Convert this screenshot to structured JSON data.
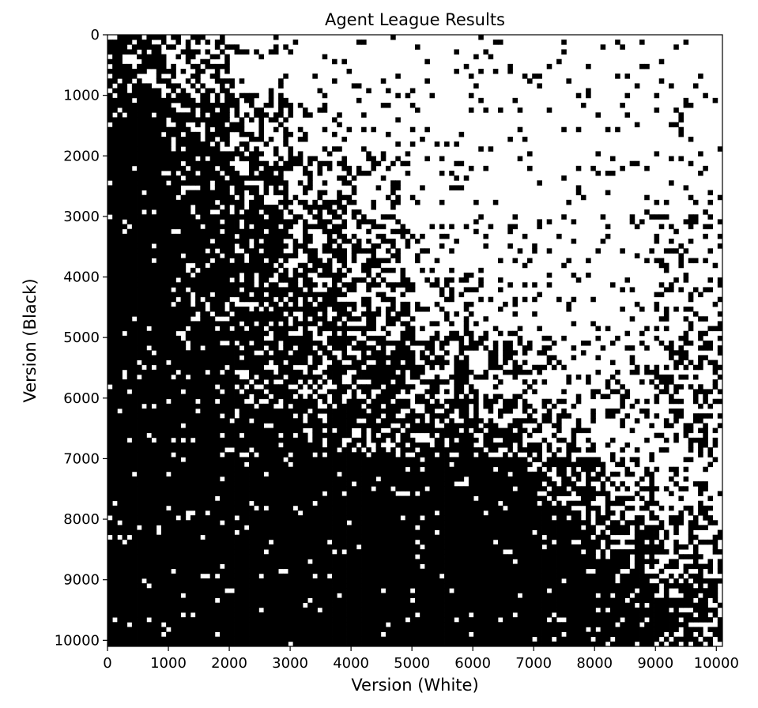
{
  "chart_data": {
    "type": "heatmap",
    "title": "Agent League Results",
    "xlabel": "Version (White)",
    "ylabel": "Version (Black)",
    "xlim": [
      0,
      10100
    ],
    "ylim": [
      10100,
      0
    ],
    "x_ticks": [
      0,
      1000,
      2000,
      3000,
      4000,
      5000,
      6000,
      7000,
      8000,
      9000,
      10000
    ],
    "y_ticks": [
      0,
      1000,
      2000,
      3000,
      4000,
      5000,
      6000,
      7000,
      8000,
      9000,
      10000
    ],
    "x_tick_labels": [
      "0",
      "1000",
      "2000",
      "3000",
      "4000",
      "5000",
      "6000",
      "7000",
      "8000",
      "9000",
      "10000"
    ],
    "y_tick_labels": [
      "0",
      "1000",
      "2000",
      "3000",
      "4000",
      "5000",
      "6000",
      "7000",
      "8000",
      "9000",
      "10000"
    ],
    "grid": false,
    "colormap": {
      "0": "#ffffff",
      "1": "#000000"
    },
    "bands": [
      {
        "y": [
          0,
          1000
        ],
        "black_fraction_by_x": [
          0.85,
          0.4,
          0.15,
          0.08,
          0.06,
          0.05,
          0.07,
          0.05,
          0.06,
          0.04,
          0.03
        ]
      },
      {
        "y": [
          1000,
          2000
        ],
        "black_fraction_by_x": [
          0.95,
          0.75,
          0.4,
          0.2,
          0.12,
          0.08,
          0.06,
          0.05,
          0.06,
          0.08,
          0.05
        ]
      },
      {
        "y": [
          2000,
          3000
        ],
        "black_fraction_by_x": [
          0.95,
          0.85,
          0.65,
          0.45,
          0.3,
          0.1,
          0.06,
          0.05,
          0.08,
          0.12,
          0.05
        ]
      },
      {
        "y": [
          3000,
          4000
        ],
        "black_fraction_by_x": [
          0.95,
          0.88,
          0.8,
          0.55,
          0.45,
          0.15,
          0.1,
          0.08,
          0.1,
          0.2,
          0.1
        ]
      },
      {
        "y": [
          4000,
          5000
        ],
        "black_fraction_by_x": [
          0.95,
          0.85,
          0.7,
          0.6,
          0.55,
          0.3,
          0.15,
          0.1,
          0.12,
          0.25,
          0.2
        ]
      },
      {
        "y": [
          5000,
          6000
        ],
        "black_fraction_by_x": [
          0.95,
          0.9,
          0.75,
          0.7,
          0.7,
          0.55,
          0.4,
          0.25,
          0.2,
          0.35,
          0.3
        ]
      },
      {
        "y": [
          6000,
          7000
        ],
        "black_fraction_by_x": [
          0.96,
          0.92,
          0.85,
          0.8,
          0.75,
          0.7,
          0.6,
          0.4,
          0.25,
          0.35,
          0.35
        ]
      },
      {
        "y": [
          7000,
          8000
        ],
        "black_fraction_by_x": [
          0.96,
          0.95,
          0.95,
          0.95,
          0.95,
          0.95,
          0.95,
          0.75,
          0.5,
          0.3,
          0.2
        ]
      },
      {
        "y": [
          8000,
          9000
        ],
        "black_fraction_by_x": [
          0.95,
          0.96,
          0.96,
          0.96,
          0.96,
          0.96,
          0.96,
          0.9,
          0.75,
          0.45,
          0.4
        ]
      },
      {
        "y": [
          9000,
          10100
        ],
        "black_fraction_by_x": [
          0.96,
          0.97,
          0.98,
          0.98,
          0.98,
          0.98,
          0.98,
          0.97,
          0.92,
          0.7,
          0.65
        ]
      }
    ]
  }
}
